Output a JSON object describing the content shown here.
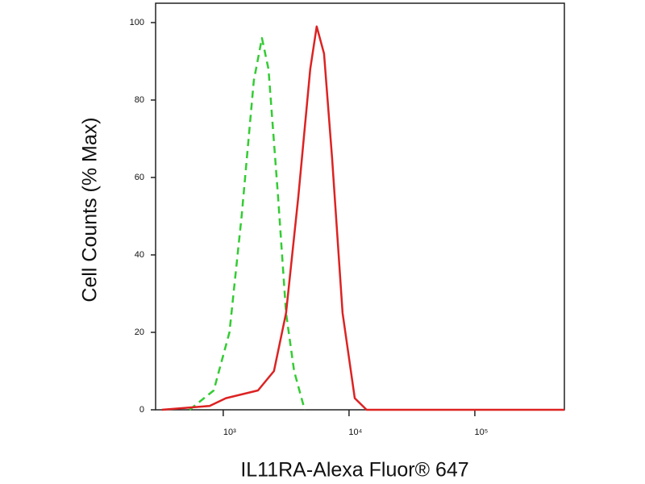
{
  "chart_data": {
    "type": "line",
    "x_label": "IL11RA-Alexa Fluor® 647",
    "y_label": "Cell Counts (% Max)",
    "xscale": "log",
    "xlim": [
      290,
      515000
    ],
    "ylim": [
      0,
      105
    ],
    "xticks": [
      {
        "value": 1000,
        "label": "10³"
      },
      {
        "value": 10000,
        "label": "10⁴"
      },
      {
        "value": 100000,
        "label": "10⁵"
      }
    ],
    "yticks": [
      0,
      20,
      40,
      60,
      80,
      100
    ],
    "series": [
      {
        "color": "#33cc33",
        "style": "dashed",
        "x": [
          540,
          840,
          1120,
          1400,
          1750,
          2030,
          2290,
          2730,
          3160,
          3660,
          4440
        ],
        "values": [
          0,
          5,
          20,
          50,
          85,
          96,
          88,
          55,
          25,
          10,
          0
        ]
      },
      {
        "color": "#dd2222",
        "style": "solid",
        "x": [
          325,
          780,
          1050,
          1890,
          2530,
          3160,
          3950,
          4920,
          5530,
          6330,
          7330,
          8890,
          11100,
          13800,
          515000
        ],
        "values": [
          0,
          1,
          3,
          5,
          10,
          25,
          55,
          88,
          99,
          92,
          65,
          25,
          3,
          0,
          0
        ]
      }
    ]
  }
}
